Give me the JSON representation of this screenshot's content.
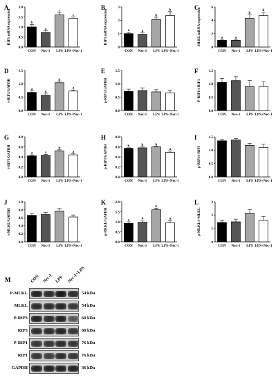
{
  "groups": [
    "CON",
    "Nec-1",
    "LPS",
    "LPS+Nec-1"
  ],
  "bar_colors": [
    "#000000",
    "#555555",
    "#a6a6a6",
    "#ffffff"
  ],
  "chart_data": [
    {
      "panel": "A",
      "type": "bar",
      "ylabel": "RIP1 mRNA expression",
      "ylim": [
        0,
        2.0
      ],
      "yticks": [
        "0.0",
        "0.5",
        "1.0",
        "1.5",
        "2.0"
      ],
      "values": [
        1.0,
        0.73,
        1.6,
        1.43
      ],
      "errors": [
        0.12,
        0.08,
        0.12,
        0.07
      ],
      "sig": [
        "b",
        "a",
        "c",
        "c"
      ]
    },
    {
      "panel": "B",
      "type": "bar",
      "ylabel": "RIP3 mRNA expression",
      "ylim": [
        0,
        3
      ],
      "yticks": [
        "0",
        "1",
        "2",
        "3"
      ],
      "values": [
        1.0,
        0.95,
        2.05,
        2.35
      ],
      "errors": [
        0.1,
        0.1,
        0.18,
        0.3
      ],
      "sig": [
        "a",
        "a",
        "b",
        "b"
      ]
    },
    {
      "panel": "C",
      "type": "bar",
      "ylabel": "MLKL mRNA expression",
      "ylim": [
        0,
        6
      ],
      "yticks": [
        "0",
        "2",
        "4",
        "6"
      ],
      "values": [
        1.0,
        1.0,
        4.3,
        4.7
      ],
      "errors": [
        0.15,
        0.15,
        0.5,
        0.5
      ],
      "sig": [
        "a",
        "a",
        "b",
        "b"
      ]
    },
    {
      "panel": "D",
      "type": "bar",
      "ylabel": "t-RIP1/GAPDH",
      "ylim": [
        0,
        1.5
      ],
      "yticks": [
        "0.0",
        "0.5",
        "1.0",
        "1.5"
      ],
      "values": [
        0.68,
        0.57,
        1.04,
        0.73
      ],
      "errors": [
        0.06,
        0.08,
        0.03,
        0.04
      ],
      "sig": [
        "a",
        "a",
        "b",
        "a"
      ]
    },
    {
      "panel": "E",
      "type": "bar",
      "ylabel": "p-RIP1/GAPDH",
      "ylim": [
        0,
        1.5
      ],
      "yticks": [
        "0.0",
        "0.5",
        "1.0",
        "1.5"
      ],
      "values": [
        0.72,
        0.75,
        0.7,
        0.66
      ],
      "errors": [
        0.08,
        0.1,
        0.08,
        0.1
      ],
      "sig": [
        "",
        "",
        "",
        ""
      ]
    },
    {
      "panel": "F",
      "type": "bar",
      "ylabel": "P-RIP1/t-RIP1",
      "ylim": [
        0,
        1.5
      ],
      "yticks": [
        "0.0",
        "0.5",
        "1.0",
        "1.5"
      ],
      "values": [
        1.05,
        1.12,
        0.9,
        0.9
      ],
      "errors": [
        0.15,
        0.15,
        0.22,
        0.18
      ],
      "sig": [
        "",
        "",
        "",
        ""
      ]
    },
    {
      "panel": "G",
      "type": "bar",
      "ylabel": "t-RIP3/GAPDH",
      "ylim": [
        0,
        0.8
      ],
      "yticks": [
        "0.0",
        "0.2",
        "0.4",
        "0.6",
        "0.8"
      ],
      "values": [
        0.42,
        0.43,
        0.52,
        0.44
      ],
      "errors": [
        0.02,
        0.02,
        0.02,
        0.02
      ],
      "sig": [
        "a",
        "a",
        "b",
        "a"
      ]
    },
    {
      "panel": "H",
      "type": "bar",
      "ylabel": "p-RIP3/GAPDH",
      "ylim": [
        0,
        0.8
      ],
      "yticks": [
        "0.0",
        "0.2",
        "0.4",
        "0.6",
        "0.8"
      ],
      "values": [
        0.57,
        0.58,
        0.6,
        0.49
      ],
      "errors": [
        0.01,
        0.02,
        0.01,
        0.03
      ],
      "sig": [
        "b",
        "b",
        "b",
        "a"
      ]
    },
    {
      "panel": "I",
      "type": "bar",
      "ylabel": "p-RIP3/t-RIP3",
      "ylim": [
        0,
        1.5
      ],
      "yticks": [
        "0.0",
        "0.5",
        "1.0",
        "1.5"
      ],
      "values": [
        1.35,
        1.38,
        1.18,
        1.1
      ],
      "errors": [
        0.05,
        0.05,
        0.08,
        0.12
      ],
      "sig": [
        "",
        "",
        "",
        ""
      ]
    },
    {
      "panel": "J",
      "type": "bar",
      "ylabel": "t-MLKL/GAPDH",
      "ylim": [
        0,
        1.0
      ],
      "yticks": [
        "0.0",
        "0.2",
        "0.4",
        "0.6",
        "0.8",
        "1.0"
      ],
      "values": [
        0.66,
        0.68,
        0.77,
        0.62
      ],
      "errors": [
        0.04,
        0.05,
        0.06,
        0.05
      ],
      "sig": [
        "",
        "",
        "",
        ""
      ]
    },
    {
      "panel": "K",
      "type": "bar",
      "ylabel": "p-MLKL/GAPDH",
      "ylim": [
        0,
        2.0
      ],
      "yticks": [
        "0.0",
        "0.5",
        "1.0",
        "1.5",
        "2.0"
      ],
      "values": [
        0.92,
        0.98,
        1.6,
        0.95
      ],
      "errors": [
        0.08,
        0.1,
        0.08,
        0.12
      ],
      "sig": [
        "a",
        "a",
        "b",
        "a"
      ]
    },
    {
      "panel": "L",
      "type": "bar",
      "ylabel": "p-MLKL/t-MLKL",
      "ylim": [
        0,
        3
      ],
      "yticks": [
        "0",
        "1",
        "2",
        "3"
      ],
      "values": [
        1.45,
        1.5,
        2.15,
        1.6
      ],
      "errors": [
        0.15,
        0.2,
        0.25,
        0.3
      ],
      "sig": [
        "",
        "",
        "",
        ""
      ]
    }
  ],
  "blot": {
    "panel": "M",
    "lanes": [
      "CON",
      "Nec-1",
      "LPS",
      "Nec-1+LPS"
    ],
    "rows": [
      {
        "name": "P-MLKL",
        "kda": "54 kDa",
        "intensity": [
          0.9,
          0.85,
          0.95,
          0.85
        ]
      },
      {
        "name": "MLKL",
        "kda": "54 kDa",
        "intensity": [
          0.85,
          0.85,
          0.9,
          0.8
        ]
      },
      {
        "name": "P-RIP3",
        "kda": "60 kDa",
        "intensity": [
          0.9,
          0.85,
          0.9,
          0.6
        ]
      },
      {
        "name": "RIP3",
        "kda": "60 kDa",
        "intensity": [
          0.85,
          0.85,
          0.9,
          0.8
        ]
      },
      {
        "name": "P-RIP1",
        "kda": "76 kDa",
        "intensity": [
          0.8,
          0.8,
          0.85,
          0.8
        ]
      },
      {
        "name": "RIP1",
        "kda": "76 kDa",
        "intensity": [
          0.8,
          0.75,
          0.85,
          0.8
        ]
      },
      {
        "name": "GAPDH",
        "kda": "36 kDa",
        "intensity": [
          0.9,
          0.9,
          0.9,
          0.9
        ]
      }
    ]
  }
}
